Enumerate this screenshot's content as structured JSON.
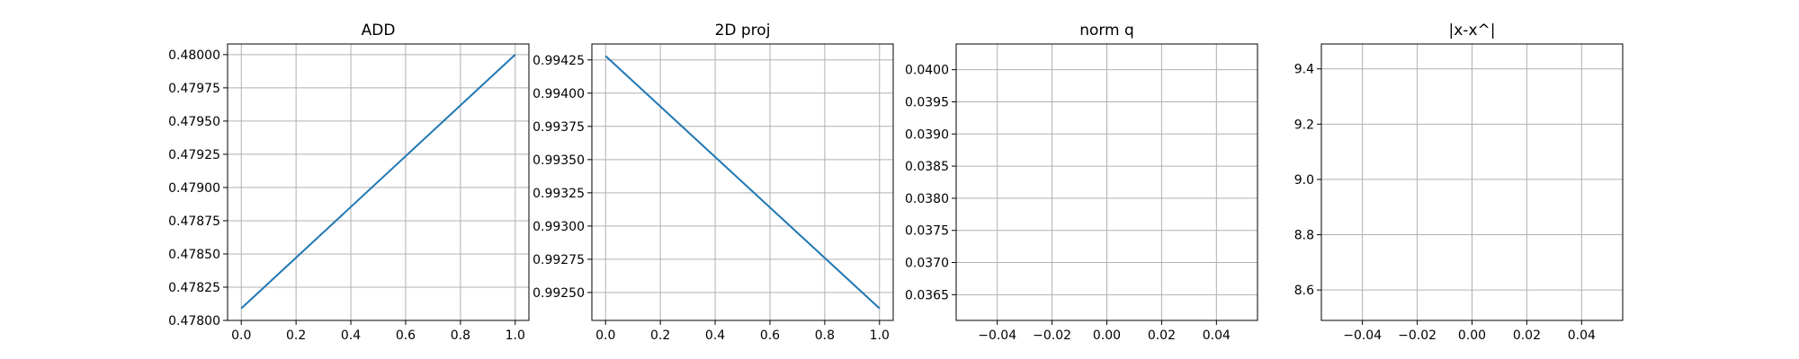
{
  "figure": {
    "background": "#ffffff",
    "grid_color": "#b0b0b0"
  },
  "chart_data": [
    {
      "type": "line",
      "title": "ADD",
      "xlabel": "",
      "ylabel": "",
      "grid": true,
      "xlim": [
        -0.05,
        1.05
      ],
      "ylim": [
        0.478,
        0.48008
      ],
      "xticks": [
        0.0,
        0.2,
        0.4,
        0.6,
        0.8,
        1.0
      ],
      "xtick_labels": [
        "0.0",
        "0.2",
        "0.4",
        "0.6",
        "0.8",
        "1.0"
      ],
      "yticks": [
        0.478,
        0.47825,
        0.4785,
        0.47875,
        0.479,
        0.47925,
        0.4795,
        0.47975,
        0.48
      ],
      "ytick_labels": [
        "0.47800",
        "0.47825",
        "0.47850",
        "0.47875",
        "0.47900",
        "0.47925",
        "0.47950",
        "0.47975",
        "0.48000"
      ],
      "series": [
        {
          "x": [
            0.0,
            1.0
          ],
          "y": [
            0.47809,
            0.48
          ],
          "color": "#1f77b4"
        }
      ]
    },
    {
      "type": "line",
      "title": "2D proj",
      "xlabel": "",
      "ylabel": "",
      "grid": true,
      "xlim": [
        -0.05,
        1.05
      ],
      "ylim": [
        0.99229,
        0.99437
      ],
      "xticks": [
        0.0,
        0.2,
        0.4,
        0.6,
        0.8,
        1.0
      ],
      "xtick_labels": [
        "0.0",
        "0.2",
        "0.4",
        "0.6",
        "0.8",
        "1.0"
      ],
      "yticks": [
        0.9925,
        0.99275,
        0.993,
        0.99325,
        0.9935,
        0.99375,
        0.994,
        0.99425
      ],
      "ytick_labels": [
        "0.99250",
        "0.99275",
        "0.99300",
        "0.99325",
        "0.99350",
        "0.99375",
        "0.99400",
        "0.99425"
      ],
      "series": [
        {
          "x": [
            0.0,
            1.0
          ],
          "y": [
            0.99428,
            0.99238
          ],
          "color": "#1f77b4"
        }
      ]
    },
    {
      "type": "line",
      "title": "norm q",
      "xlabel": "",
      "ylabel": "",
      "grid": true,
      "xlim": [
        -0.055,
        0.055
      ],
      "ylim": [
        0.0361,
        0.0404
      ],
      "xticks": [
        -0.04,
        -0.02,
        0.0,
        0.02,
        0.04
      ],
      "xtick_labels": [
        "−0.04",
        "−0.02",
        "0.00",
        "0.02",
        "0.04"
      ],
      "yticks": [
        0.0365,
        0.037,
        0.0375,
        0.038,
        0.0385,
        0.039,
        0.0395,
        0.04
      ],
      "ytick_labels": [
        "0.0365",
        "0.0370",
        "0.0375",
        "0.0380",
        "0.0385",
        "0.0390",
        "0.0395",
        "0.0400"
      ],
      "series": []
    },
    {
      "type": "line",
      "title": "|x-x^|",
      "xlabel": "",
      "ylabel": "",
      "grid": true,
      "xlim": [
        -0.055,
        0.055
      ],
      "ylim": [
        8.49,
        9.49
      ],
      "xticks": [
        -0.04,
        -0.02,
        0.0,
        0.02,
        0.04
      ],
      "xtick_labels": [
        "−0.04",
        "−0.02",
        "0.00",
        "0.02",
        "0.04"
      ],
      "yticks": [
        8.6,
        8.8,
        9.0,
        9.2,
        9.4
      ],
      "ytick_labels": [
        "8.6",
        "8.8",
        "9.0",
        "9.2",
        "9.4"
      ],
      "series": []
    }
  ]
}
